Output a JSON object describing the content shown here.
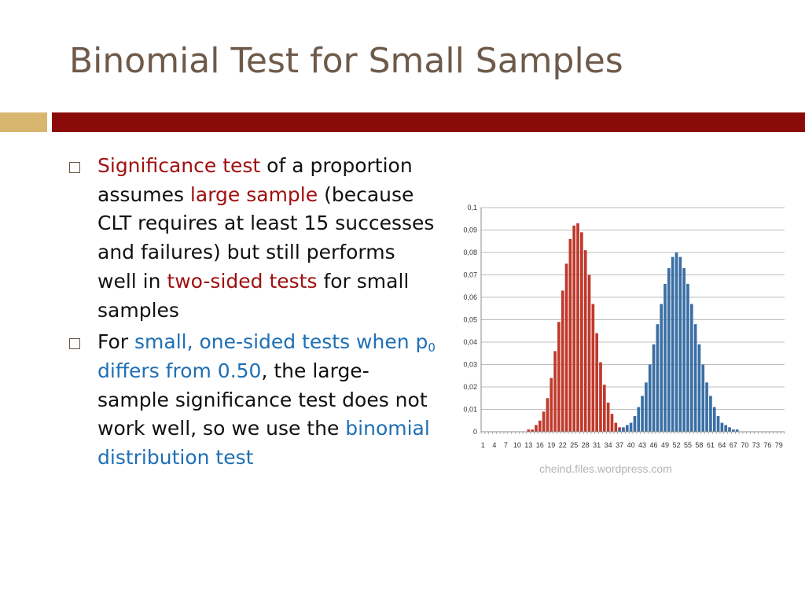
{
  "slide": {
    "title": "Binomial Test for Small Samples",
    "bullet1": {
      "p1": "Significance test",
      "p2": " of a proportion assumes ",
      "p3": "large sample",
      "p4": " (because CLT requires at least 15 successes and failures) but still performs well in ",
      "p5": "two-sided tests",
      "p6": " for small samples"
    },
    "bullet2": {
      "p1": "For ",
      "p2": "small, one-sided tests when p",
      "p2sub": "0",
      "p3": " differs from 0.50",
      "p4": ", the large-sample significance test does not work well, so we use the ",
      "p5": "binomial distribution test"
    },
    "credit": "cheind.files.wordpress.com",
    "colors": {
      "red_text": "#a01010",
      "blue_text": "#1f6fb5",
      "title": "#6e5a4a",
      "accent_bar": "#8b0a0a",
      "gold_bar": "#d8b670"
    }
  },
  "chart_data": {
    "type": "bar",
    "ylim": [
      0,
      0.1
    ],
    "yticks": [
      "0",
      "0,01",
      "0,02",
      "0,03",
      "0,04",
      "0,05",
      "0,06",
      "0,07",
      "0,08",
      "0,09",
      "0,1"
    ],
    "xticks": [
      "1",
      "4",
      "7",
      "10",
      "13",
      "16",
      "19",
      "22",
      "25",
      "28",
      "31",
      "34",
      "37",
      "40",
      "43",
      "46",
      "49",
      "52",
      "55",
      "58",
      "61",
      "64",
      "67",
      "70",
      "73",
      "76",
      "79"
    ],
    "grid": true,
    "x": [
      1,
      2,
      3,
      4,
      5,
      6,
      7,
      8,
      9,
      10,
      11,
      12,
      13,
      14,
      15,
      16,
      17,
      18,
      19,
      20,
      21,
      22,
      23,
      24,
      25,
      26,
      27,
      28,
      29,
      30,
      31,
      32,
      33,
      34,
      35,
      36,
      37,
      38,
      39,
      40,
      41,
      42,
      43,
      44,
      45,
      46,
      47,
      48,
      49,
      50,
      51,
      52,
      53,
      54,
      55,
      56,
      57,
      58,
      59,
      60,
      61,
      62,
      63,
      64,
      65,
      66,
      67,
      68,
      69,
      70,
      71,
      72,
      73,
      74,
      75,
      76,
      77,
      78,
      79,
      80
    ],
    "series": [
      {
        "color": "#c0392b",
        "values": [
          0,
          0,
          0,
          0,
          0,
          0,
          0,
          0,
          0,
          0,
          0,
          0,
          0.001,
          0.001,
          0.003,
          0.005,
          0.009,
          0.015,
          0.024,
          0.036,
          0.049,
          0.063,
          0.075,
          0.086,
          0.092,
          0.093,
          0.089,
          0.081,
          0.07,
          0.057,
          0.044,
          0.031,
          0.021,
          0.013,
          0.008,
          0.004,
          0.002,
          0.001,
          0,
          0,
          0,
          0,
          0,
          0,
          0,
          0,
          0,
          0,
          0,
          0,
          0,
          0,
          0,
          0,
          0,
          0,
          0,
          0,
          0,
          0,
          0,
          0,
          0,
          0,
          0,
          0,
          0,
          0,
          0,
          0,
          0,
          0,
          0,
          0,
          0,
          0,
          0,
          0,
          0,
          0
        ]
      },
      {
        "color": "#3a6ea5",
        "values": [
          0,
          0,
          0,
          0,
          0,
          0,
          0,
          0,
          0,
          0,
          0,
          0,
          0,
          0,
          0,
          0,
          0,
          0,
          0,
          0,
          0,
          0,
          0,
          0,
          0,
          0,
          0,
          0,
          0,
          0,
          0,
          0,
          0,
          0,
          0,
          0,
          0.001,
          0.002,
          0.003,
          0.004,
          0.007,
          0.011,
          0.016,
          0.022,
          0.03,
          0.039,
          0.048,
          0.057,
          0.066,
          0.073,
          0.078,
          0.08,
          0.078,
          0.073,
          0.066,
          0.057,
          0.048,
          0.039,
          0.03,
          0.022,
          0.016,
          0.011,
          0.007,
          0.004,
          0.003,
          0.002,
          0.001,
          0.001,
          0,
          0,
          0,
          0,
          0,
          0,
          0,
          0,
          0,
          0,
          0,
          0
        ]
      }
    ]
  }
}
